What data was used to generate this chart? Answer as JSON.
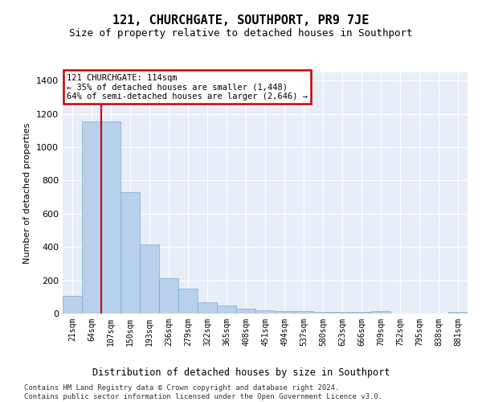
{
  "title": "121, CHURCHGATE, SOUTHPORT, PR9 7JE",
  "subtitle": "Size of property relative to detached houses in Southport",
  "xlabel": "Distribution of detached houses by size in Southport",
  "ylabel": "Number of detached properties",
  "bar_color": "#b8d0ea",
  "bar_edge_color": "#7aacd4",
  "highlight_color": "#cc0000",
  "background_color": "#e8eef8",
  "categories": [
    "21sqm",
    "64sqm",
    "107sqm",
    "150sqm",
    "193sqm",
    "236sqm",
    "279sqm",
    "322sqm",
    "365sqm",
    "408sqm",
    "451sqm",
    "494sqm",
    "537sqm",
    "580sqm",
    "623sqm",
    "666sqm",
    "709sqm",
    "752sqm",
    "795sqm",
    "838sqm",
    "881sqm"
  ],
  "bar_heights": [
    105,
    1155,
    1155,
    730,
    415,
    215,
    150,
    70,
    50,
    30,
    20,
    15,
    15,
    10,
    10,
    10,
    15,
    0,
    0,
    0,
    10
  ],
  "highlight_bar_index": 2,
  "annotation_line1": "121 CHURCHGATE: 114sqm",
  "annotation_line2": "← 35% of detached houses are smaller (1,448)",
  "annotation_line3": "64% of semi-detached houses are larger (2,646) →",
  "ylim": [
    0,
    1450
  ],
  "yticks": [
    0,
    200,
    400,
    600,
    800,
    1000,
    1200,
    1400
  ],
  "footer_line1": "Contains HM Land Registry data © Crown copyright and database right 2024.",
  "footer_line2": "Contains public sector information licensed under the Open Government Licence v3.0."
}
